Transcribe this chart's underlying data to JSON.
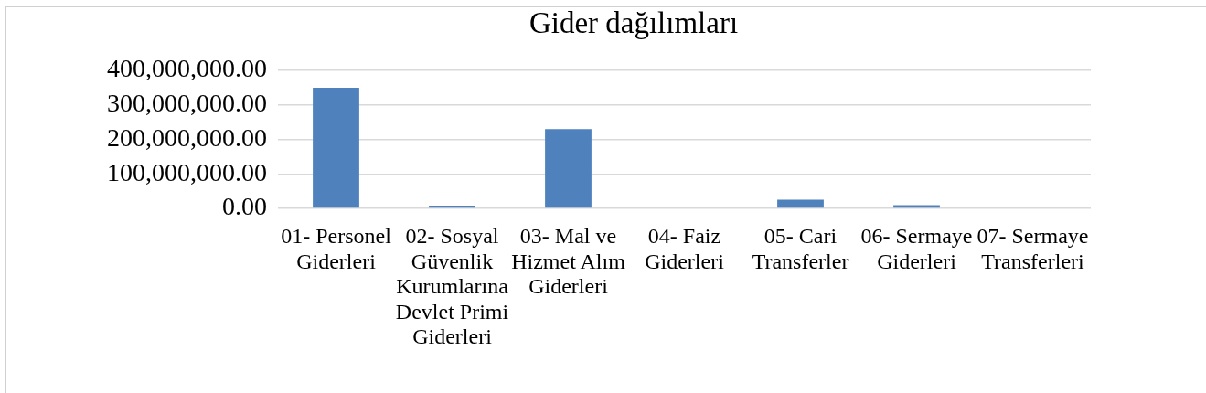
{
  "chart_data": {
    "type": "bar",
    "title": "Gider dağılımları",
    "categories": [
      "01- Personel Giderleri",
      "02- Sosyal Güvenlik Kurumlarına Devlet Primi Giderleri",
      "03- Mal ve Hizmet Alım Giderleri",
      "04- Faiz Giderleri",
      "05- Cari Transferler",
      "06- Sermaye Giderleri",
      "07- Sermaye Transferleri"
    ],
    "values": [
      350000000,
      8000000,
      230000000,
      null,
      25000000,
      9000000,
      2000000
    ],
    "color": "#4f81bd",
    "ylim": [
      0,
      400000000
    ],
    "yticks": [
      {
        "value": 0,
        "label": "0.00"
      },
      {
        "value": 100000000,
        "label": "100,000,000.00"
      },
      {
        "value": 200000000,
        "label": "200,000,000.00"
      },
      {
        "value": 300000000,
        "label": "300,000,000.00"
      },
      {
        "value": 400000000,
        "label": "400,000,000.00"
      }
    ],
    "grid": "y"
  }
}
